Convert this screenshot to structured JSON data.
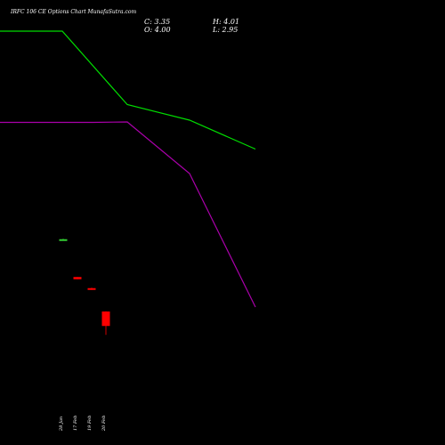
{
  "header": {
    "title": "IRFC 106  CE Options  Chart MunafaSutra.com",
    "close": "C: 3.35",
    "open": "O: 4.00",
    "high": "H: 4.01",
    "low": "L: 2.95"
  },
  "chart_data": {
    "type": "candlestick",
    "x_labels": [
      "28 Jan",
      "17 Feb",
      "19 Feb",
      "20 Feb"
    ],
    "candles": [
      {
        "label": "28 Jan",
        "open": 7.25,
        "high": 7.27,
        "low": 7.22,
        "close": 7.22,
        "color": "#33cc33"
      },
      {
        "label": "17 Feb",
        "open": 5.55,
        "high": 5.55,
        "low": 5.45,
        "close": 5.45,
        "color": "#ff0000"
      },
      {
        "label": "19 Feb",
        "open": 5.05,
        "high": 5.07,
        "low": 4.97,
        "close": 4.99,
        "color": "#ff0000"
      },
      {
        "label": "20 Feb",
        "open": 4.0,
        "high": 4.01,
        "low": 2.95,
        "close": 3.35,
        "color": "#ff0000"
      }
    ],
    "lines": [
      {
        "color": "#00dd00",
        "points": [
          [
            0,
            16.6
          ],
          [
            70,
            16.6
          ],
          [
            143,
            13.3
          ],
          [
            213,
            12.6
          ],
          [
            287,
            11.3
          ]
        ]
      },
      {
        "color": "#aa00aa",
        "points": [
          [
            0,
            12.5
          ],
          [
            105,
            12.5
          ],
          [
            143,
            12.52
          ],
          [
            213,
            10.2
          ],
          [
            287,
            4.2
          ]
        ]
      }
    ],
    "y_axis": {
      "range": [
        -2,
        18
      ]
    },
    "grid": false,
    "legend": "none"
  }
}
